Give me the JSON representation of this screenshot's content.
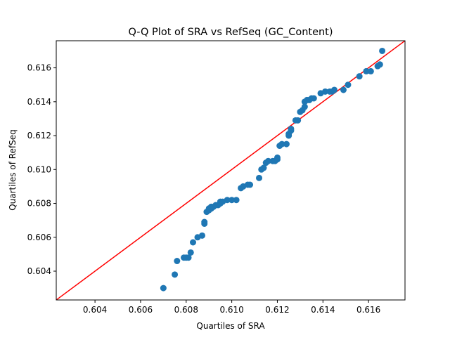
{
  "chart_data": {
    "type": "scatter",
    "title": "Q-Q Plot of SRA vs RefSeq (GC_Content)",
    "xlabel": "Quartiles of SRA",
    "ylabel": "Quartiles of RefSeq",
    "xlim": [
      0.6023,
      0.6176
    ],
    "ylim": [
      0.6023,
      0.6176
    ],
    "xticks": [
      "0.604",
      "0.606",
      "0.608",
      "0.610",
      "0.612",
      "0.614",
      "0.616"
    ],
    "yticks": [
      "0.604",
      "0.606",
      "0.608",
      "0.610",
      "0.612",
      "0.614",
      "0.616"
    ],
    "grid": false,
    "point_color": "#1f77b4",
    "reference_line": {
      "color": "#ff0000",
      "x": [
        0.6023,
        0.6176
      ],
      "y": [
        0.6023,
        0.6176
      ]
    },
    "points": {
      "x": [
        0.607,
        0.6075,
        0.6076,
        0.6079,
        0.608,
        0.6081,
        0.6082,
        0.6083,
        0.6085,
        0.6087,
        0.6088,
        0.6088,
        0.6089,
        0.609,
        0.609,
        0.6091,
        0.6091,
        0.6092,
        0.6093,
        0.6094,
        0.6095,
        0.6095,
        0.6096,
        0.6098,
        0.61,
        0.6102,
        0.6104,
        0.6105,
        0.6107,
        0.6108,
        0.6112,
        0.6113,
        0.6114,
        0.6115,
        0.6116,
        0.6118,
        0.6119,
        0.612,
        0.612,
        0.6121,
        0.6122,
        0.6124,
        0.6125,
        0.6125,
        0.6126,
        0.6126,
        0.6128,
        0.6129,
        0.613,
        0.6131,
        0.6132,
        0.6132,
        0.6133,
        0.6134,
        0.6135,
        0.6136,
        0.6139,
        0.6141,
        0.6143,
        0.6144,
        0.6145,
        0.6149,
        0.6151,
        0.6156,
        0.6159,
        0.6161,
        0.6164,
        0.6165,
        0.6166
      ],
      "y": [
        0.603,
        0.6038,
        0.6046,
        0.6048,
        0.6048,
        0.6048,
        0.6051,
        0.6057,
        0.606,
        0.6061,
        0.6068,
        0.6069,
        0.6075,
        0.6076,
        0.6077,
        0.6077,
        0.6078,
        0.6078,
        0.6079,
        0.6079,
        0.608,
        0.6081,
        0.6081,
        0.6082,
        0.6082,
        0.6082,
        0.6089,
        0.609,
        0.6091,
        0.6091,
        0.6095,
        0.61,
        0.6101,
        0.6104,
        0.6105,
        0.6105,
        0.6105,
        0.6106,
        0.6107,
        0.6114,
        0.6115,
        0.6115,
        0.612,
        0.6121,
        0.6123,
        0.6124,
        0.6129,
        0.6129,
        0.6134,
        0.6135,
        0.6137,
        0.614,
        0.6141,
        0.6141,
        0.6142,
        0.6142,
        0.6145,
        0.6146,
        0.6146,
        0.6146,
        0.6147,
        0.6147,
        0.615,
        0.6155,
        0.6158,
        0.6158,
        0.6161,
        0.6162,
        0.617
      ]
    }
  }
}
